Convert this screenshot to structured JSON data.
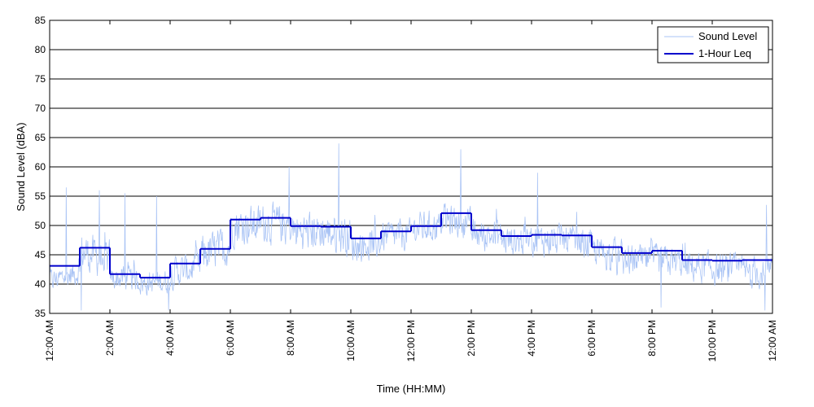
{
  "chart_data": {
    "type": "line",
    "title": "",
    "xlabel": "Time (HH:MM)",
    "ylabel": "Sound Level (dBA)",
    "ylim": [
      35,
      85
    ],
    "yticks": [
      35,
      40,
      45,
      50,
      55,
      60,
      65,
      70,
      75,
      80,
      85
    ],
    "xlim_hours": [
      0,
      24
    ],
    "xticks": [
      {
        "hour": 0,
        "label": "12:00 AM"
      },
      {
        "hour": 2,
        "label": "2:00 AM"
      },
      {
        "hour": 4,
        "label": "4:00 AM"
      },
      {
        "hour": 6,
        "label": "6:00 AM"
      },
      {
        "hour": 8,
        "label": "8:00 AM"
      },
      {
        "hour": 10,
        "label": "10:00 AM"
      },
      {
        "hour": 12,
        "label": "12:00 PM"
      },
      {
        "hour": 14,
        "label": "2:00 PM"
      },
      {
        "hour": 16,
        "label": "4:00 PM"
      },
      {
        "hour": 18,
        "label": "6:00 PM"
      },
      {
        "hour": 20,
        "label": "8:00 PM"
      },
      {
        "hour": 22,
        "label": "10:00 PM"
      },
      {
        "hour": 24,
        "label": "12:00 AM"
      }
    ],
    "grid": "horizontal",
    "legend_position": "top-right",
    "series": [
      {
        "name": "Sound Level",
        "color": "#aac4f5",
        "style": "thin-noisy",
        "approx_hourly_mean": [
          40.5,
          45.5,
          41,
          40,
          42,
          45,
          50,
          50.5,
          49,
          49,
          46.5,
          48,
          49.5,
          51,
          48.5,
          47.5,
          47.5,
          47.5,
          45.5,
          44,
          44,
          43,
          42.5,
          42
        ],
        "approx_hourly_spread": [
          3,
          5,
          3,
          3,
          4,
          5,
          5,
          5,
          5,
          5,
          4,
          4,
          4,
          4,
          4,
          4,
          4,
          4,
          4,
          4,
          4,
          4,
          4,
          4
        ],
        "peaks": [
          {
            "hour": 0.55,
            "value": 56.5
          },
          {
            "hour": 1.65,
            "value": 56
          },
          {
            "hour": 2.5,
            "value": 55.5
          },
          {
            "hour": 3.55,
            "value": 55
          },
          {
            "hour": 7.95,
            "value": 60
          },
          {
            "hour": 9.6,
            "value": 64
          },
          {
            "hour": 13.65,
            "value": 63
          },
          {
            "hour": 16.2,
            "value": 59
          },
          {
            "hour": 23.8,
            "value": 53.5
          }
        ],
        "troughs": [
          {
            "hour": 1.05,
            "value": 35.5
          },
          {
            "hour": 3.95,
            "value": 35.5
          },
          {
            "hour": 20.3,
            "value": 36
          },
          {
            "hour": 23.75,
            "value": 35.5
          }
        ]
      },
      {
        "name": "1-Hour Leq",
        "color": "#0000cc",
        "style": "step",
        "hours": [
          0,
          1,
          2,
          3,
          4,
          5,
          6,
          7,
          8,
          9,
          10,
          11,
          12,
          13,
          14,
          15,
          16,
          17,
          18,
          19,
          20,
          21,
          22,
          23
        ],
        "values": [
          43.1,
          46.2,
          41.7,
          41.1,
          43.5,
          46.0,
          51.0,
          51.3,
          49.9,
          49.8,
          47.8,
          49.0,
          49.9,
          52.1,
          49.2,
          48.2,
          48.4,
          48.3,
          46.3,
          45.3,
          45.7,
          44.1,
          44.0,
          44.1
        ]
      }
    ]
  }
}
